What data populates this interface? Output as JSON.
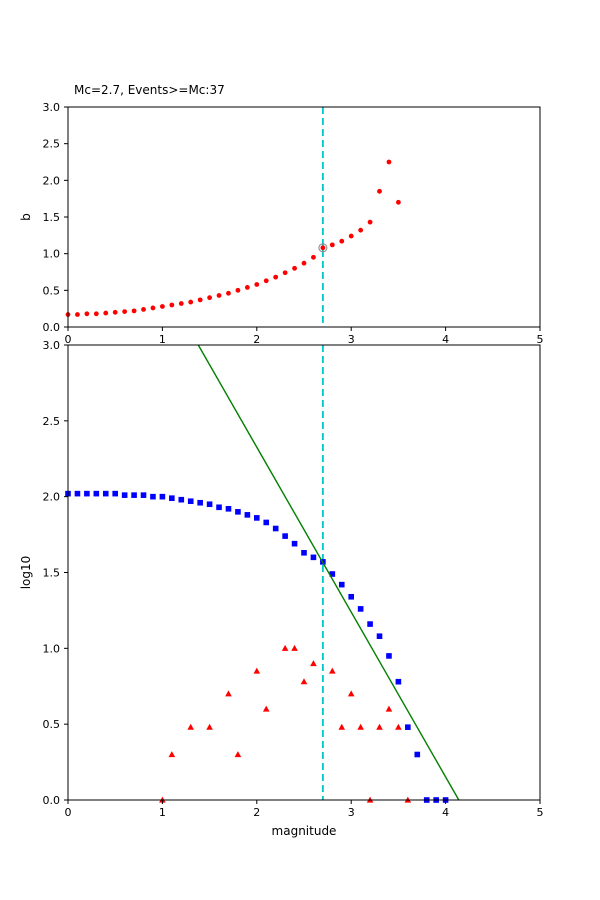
{
  "figure": {
    "background": "#ffffff",
    "frame_color": "#000000"
  },
  "chart_data": [
    {
      "type": "scatter",
      "title": "Mc=2.7, Events>=Mc:37",
      "xlabel": "",
      "ylabel": "b",
      "xlim": [
        0,
        5
      ],
      "ylim": [
        0,
        3
      ],
      "xticks": [
        "0",
        "1",
        "2",
        "3",
        "4",
        "5"
      ],
      "yticks": [
        "0.0",
        "0.5",
        "1.0",
        "1.5",
        "2.0",
        "2.5",
        "3.0"
      ],
      "grid": false,
      "legend": "none",
      "vline": {
        "x": 2.7,
        "color": "#00c8c8",
        "style": "dashed"
      },
      "series": [
        {
          "name": "b-value-vs-magnitude-cutoff",
          "marker": "dot",
          "color": "#ff0000",
          "x": [
            0.0,
            0.1,
            0.2,
            0.3,
            0.4,
            0.5,
            0.6,
            0.7,
            0.8,
            0.9,
            1.0,
            1.1,
            1.2,
            1.3,
            1.4,
            1.5,
            1.6,
            1.7,
            1.8,
            1.9,
            2.0,
            2.1,
            2.2,
            2.3,
            2.4,
            2.5,
            2.6,
            2.7,
            2.8,
            2.9,
            3.0,
            3.1,
            3.2,
            3.3,
            3.4,
            3.5
          ],
          "y": [
            0.17,
            0.17,
            0.18,
            0.18,
            0.19,
            0.2,
            0.21,
            0.22,
            0.24,
            0.26,
            0.28,
            0.3,
            0.32,
            0.34,
            0.37,
            0.4,
            0.43,
            0.46,
            0.5,
            0.54,
            0.58,
            0.63,
            0.68,
            0.74,
            0.8,
            0.87,
            0.95,
            1.08,
            1.12,
            1.17,
            1.24,
            1.32,
            1.43,
            1.85,
            2.25,
            1.7
          ]
        },
        {
          "name": "b-at-mc-marker",
          "marker": "open-circle",
          "color": "#8c8c8c",
          "x": [
            2.7
          ],
          "y": [
            1.08
          ]
        }
      ]
    },
    {
      "type": "scatter",
      "title": "",
      "xlabel": "magnitude",
      "ylabel": "log10",
      "xlim": [
        0,
        5
      ],
      "ylim": [
        0,
        3
      ],
      "xticks": [
        "0",
        "1",
        "2",
        "3",
        "4",
        "5"
      ],
      "yticks": [
        "0.0",
        "0.5",
        "1.0",
        "1.5",
        "2.0",
        "2.5",
        "3.0"
      ],
      "grid": false,
      "legend": "none",
      "vline": {
        "x": 2.7,
        "color": "#00c8c8",
        "style": "dashed"
      },
      "series": [
        {
          "name": "cumulative-event-count-log10",
          "marker": "square",
          "color": "#0000ff",
          "x": [
            0.0,
            0.1,
            0.2,
            0.3,
            0.4,
            0.5,
            0.6,
            0.7,
            0.8,
            0.9,
            1.0,
            1.1,
            1.2,
            1.3,
            1.4,
            1.5,
            1.6,
            1.7,
            1.8,
            1.9,
            2.0,
            2.1,
            2.2,
            2.3,
            2.4,
            2.5,
            2.6,
            2.7,
            2.8,
            2.9,
            3.0,
            3.1,
            3.2,
            3.3,
            3.4,
            3.5,
            3.6,
            3.7,
            3.8,
            3.9,
            4.0
          ],
          "y": [
            2.02,
            2.02,
            2.02,
            2.02,
            2.02,
            2.02,
            2.01,
            2.01,
            2.01,
            2.0,
            2.0,
            1.99,
            1.98,
            1.97,
            1.96,
            1.95,
            1.93,
            1.92,
            1.9,
            1.88,
            1.86,
            1.83,
            1.79,
            1.74,
            1.69,
            1.63,
            1.6,
            1.57,
            1.49,
            1.42,
            1.34,
            1.26,
            1.16,
            1.08,
            0.95,
            0.78,
            0.48,
            0.3,
            0.0,
            0.0,
            0.0
          ]
        },
        {
          "name": "binned-event-count-log10",
          "marker": "triangle",
          "color": "#ff0000",
          "x": [
            1.0,
            1.1,
            1.3,
            1.5,
            1.7,
            1.8,
            2.0,
            2.1,
            2.3,
            2.4,
            2.5,
            2.6,
            2.8,
            2.9,
            3.0,
            3.1,
            3.2,
            3.3,
            3.4,
            3.5,
            3.6
          ],
          "y": [
            0.0,
            0.3,
            0.48,
            0.48,
            0.7,
            0.3,
            0.85,
            0.6,
            1.0,
            1.0,
            0.78,
            0.9,
            0.85,
            0.48,
            0.7,
            0.48,
            0.0,
            0.48,
            0.6,
            0.48,
            0.0
          ]
        },
        {
          "name": "gutenberg-richter-fit-line",
          "marker": "line",
          "color": "#008000",
          "x": [
            1.38,
            4.14
          ],
          "y": [
            3.0,
            0.0
          ]
        }
      ]
    }
  ]
}
